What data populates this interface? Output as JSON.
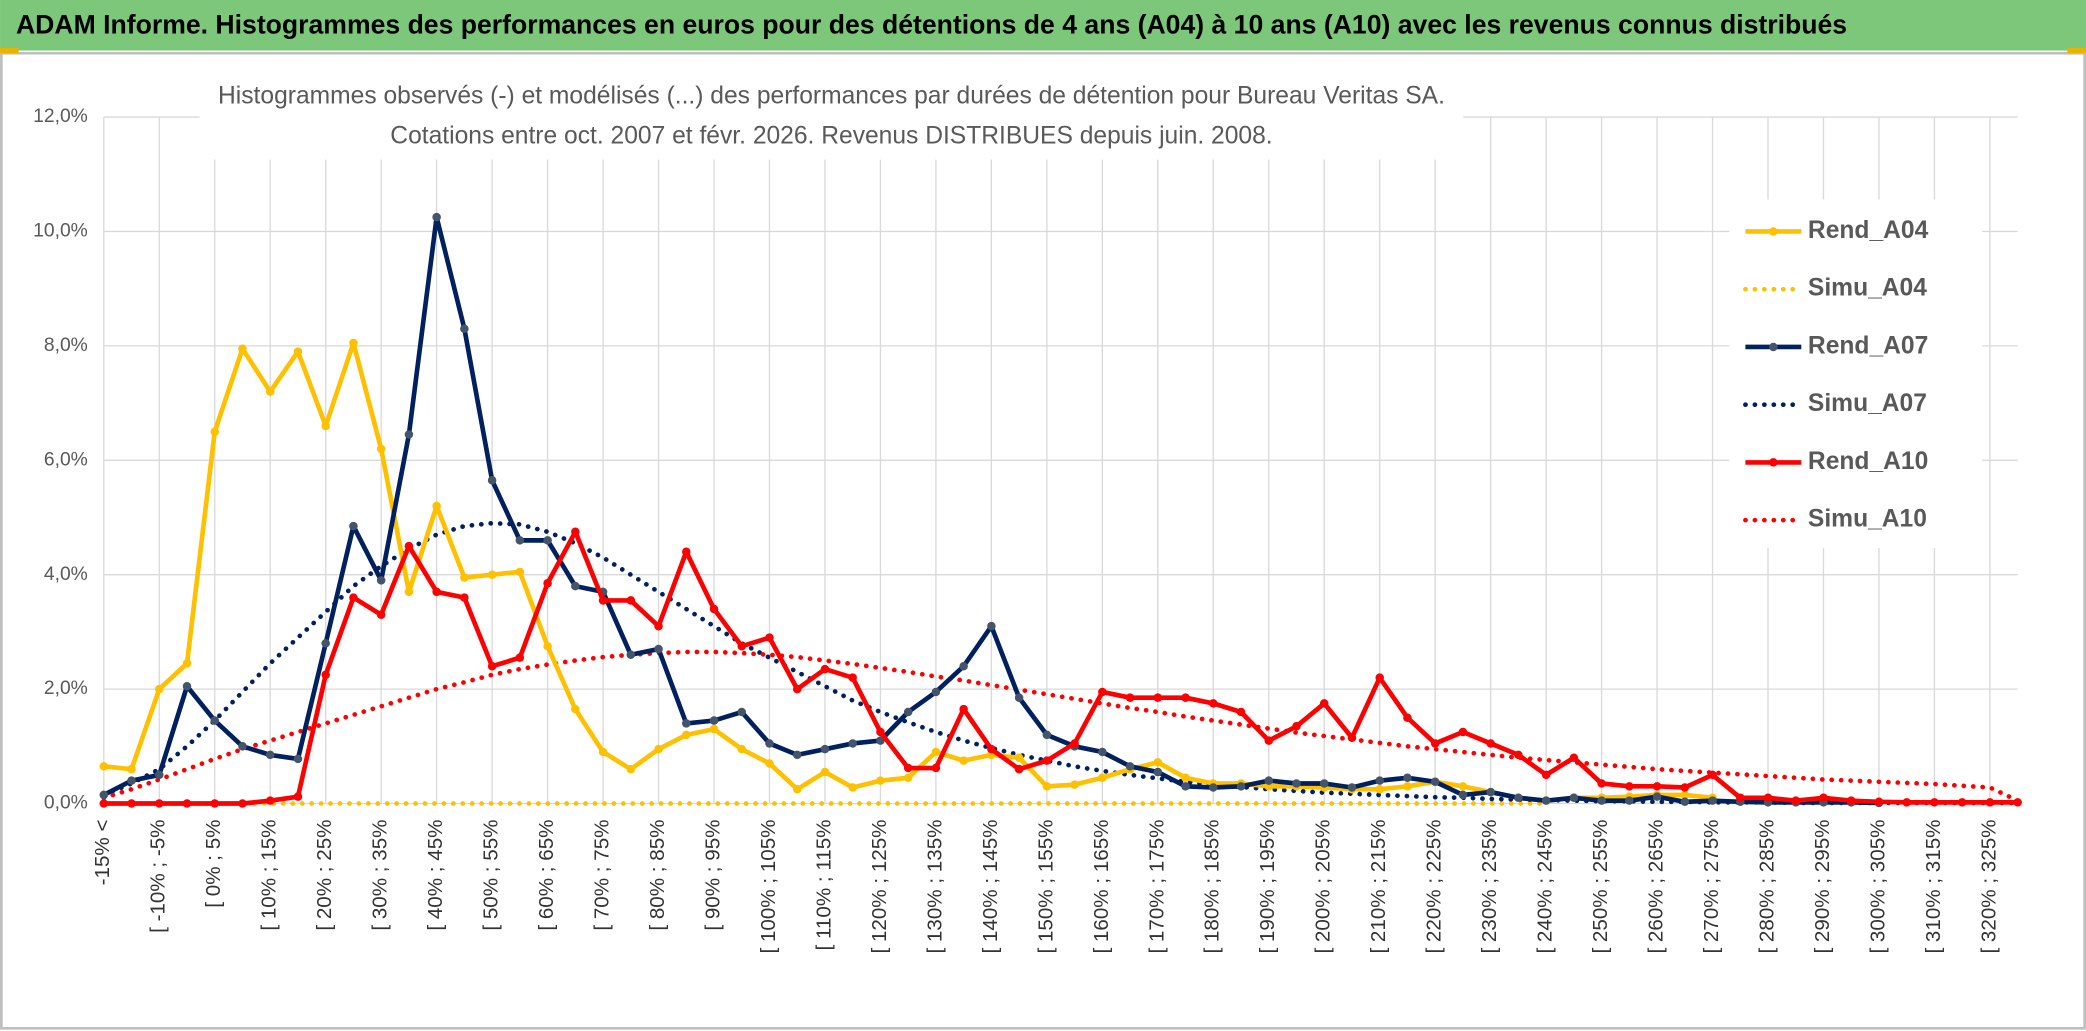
{
  "chart_data": {
    "type": "line",
    "title": "ADAM Informe. Histogrammes des performances en euros pour des détentions de 4 ans (A04) à 10 ans (A10) avec les revenus connus distribués",
    "subtitle": [
      "Histogrammes observés (-) et modélisés (...) des performances par durées de détention pour Bureau Veritas SA.",
      "Cotations entre oct. 2007 et févr. 2026. Revenus DISTRIBUES depuis juin. 2008."
    ],
    "categories": [
      "-15% <",
      null,
      "[ -10% ; -5%",
      null,
      "[ 0% ; 5%",
      null,
      "[ 10% ; 15%",
      null,
      "[ 20% ; 25%",
      null,
      "[ 30% ; 35%",
      null,
      "[ 40% ; 45%",
      null,
      "[ 50% ; 55%",
      null,
      "[ 60% ; 65%",
      null,
      "[ 70% ; 75%",
      null,
      "[ 80% ; 85%",
      null,
      "[ 90% ; 95%",
      null,
      "[ 100% ; 105%",
      null,
      "[ 110% ; 115%",
      null,
      "[ 120% ; 125%",
      null,
      "[ 130% ; 135%",
      null,
      "[ 140% ; 145%",
      null,
      "[ 150% ; 155%",
      null,
      "[ 160% ; 165%",
      null,
      "[ 170% ; 175%",
      null,
      "[ 180% ; 185%",
      null,
      "[ 190% ; 195%",
      null,
      "[ 200% ; 205%",
      null,
      "[ 210% ; 215%",
      null,
      "[ 220% ; 225%",
      null,
      "[ 230% ; 235%",
      null,
      "[ 240% ; 245%",
      null,
      "[ 250% ; 255%",
      null,
      "[ 260% ; 265%",
      null,
      "[ 270% ; 275%",
      null,
      "[ 280% ; 285%",
      null,
      "[ 290% ; 295%",
      null,
      "[ 300% ; 305%",
      null,
      "[ 310% ; 315%",
      null,
      "[ 320% ; 325%",
      null
    ],
    "ylim": [
      0,
      12
    ],
    "yticks": [
      {
        "value": 0,
        "label": "0,0%"
      },
      {
        "value": 2,
        "label": "2,0%"
      },
      {
        "value": 4,
        "label": "4,0%"
      },
      {
        "value": 6,
        "label": "6,0%"
      },
      {
        "value": 8,
        "label": "8,0%"
      },
      {
        "value": 10,
        "label": "10,0%"
      },
      {
        "value": 12,
        "label": "12,0%"
      }
    ],
    "grid": true,
    "legend": "right",
    "series": [
      {
        "name": "Rend_A04",
        "color": "#ffc000",
        "style": "solid",
        "values": [
          0.65,
          0.6,
          2.0,
          2.45,
          6.5,
          7.95,
          7.2,
          7.9,
          6.6,
          8.05,
          6.2,
          3.7,
          5.2,
          3.95,
          4.0,
          4.05,
          2.75,
          1.65,
          0.9,
          0.6,
          0.95,
          1.2,
          1.3,
          0.95,
          0.7,
          0.25,
          0.55,
          0.28,
          0.4,
          0.45,
          0.9,
          0.75,
          0.85,
          0.8,
          0.3,
          0.33,
          0.45,
          0.6,
          0.72,
          0.45,
          0.35,
          0.35,
          0.3,
          0.3,
          0.28,
          0.25,
          0.25,
          0.3,
          0.38,
          0.3,
          0.2,
          0.1,
          0.05,
          0.1,
          0.1,
          0.12,
          0.15,
          0.15,
          0.1,
          null,
          null,
          null,
          null,
          null,
          null,
          null,
          null,
          null,
          null,
          null
        ]
      },
      {
        "name": "Simu_A04",
        "color": "#ffc000",
        "style": "dotted",
        "values": [
          0,
          0,
          0,
          0,
          0,
          0,
          0,
          0,
          0,
          0,
          0,
          0,
          0,
          0,
          0,
          0,
          0,
          0,
          0,
          0,
          0,
          0,
          0,
          0,
          0,
          0,
          0,
          0,
          0,
          0,
          0,
          0,
          0,
          0,
          0,
          0,
          0,
          0,
          0,
          0,
          0,
          0,
          0,
          0,
          0,
          0,
          0,
          0,
          0,
          0,
          0,
          0,
          0,
          null,
          null,
          null,
          null,
          null,
          null,
          null,
          null,
          null,
          null,
          null,
          null,
          null,
          null,
          null,
          null,
          null
        ]
      },
      {
        "name": "Rend_A07",
        "color": "#002060",
        "style": "solid",
        "values": [
          0.15,
          0.4,
          0.5,
          2.05,
          1.45,
          1.0,
          0.85,
          0.78,
          2.8,
          4.85,
          3.9,
          6.45,
          10.25,
          8.3,
          5.65,
          4.6,
          4.6,
          3.8,
          3.7,
          2.6,
          2.7,
          1.4,
          1.45,
          1.6,
          1.05,
          0.85,
          0.95,
          1.05,
          1.1,
          1.6,
          1.95,
          2.4,
          3.1,
          1.85,
          1.2,
          1.0,
          0.9,
          0.65,
          0.55,
          0.3,
          0.28,
          0.3,
          0.4,
          0.35,
          0.35,
          0.28,
          0.4,
          0.45,
          0.38,
          0.15,
          0.2,
          0.1,
          0.05,
          0.1,
          0.05,
          0.05,
          0.12,
          0.03,
          0.05,
          0.03,
          0.02,
          0.02,
          0.02,
          0.02,
          0.01,
          null,
          null,
          null,
          null,
          null
        ]
      },
      {
        "name": "Simu_A07",
        "color": "#002060",
        "style": "dotted",
        "values": [
          0.15,
          0.35,
          0.6,
          1.0,
          1.45,
          1.95,
          2.45,
          2.9,
          3.35,
          3.8,
          4.15,
          4.45,
          4.7,
          4.85,
          4.9,
          4.88,
          4.75,
          4.55,
          4.3,
          4.0,
          3.7,
          3.4,
          3.1,
          2.8,
          2.55,
          2.3,
          2.05,
          1.8,
          1.6,
          1.42,
          1.25,
          1.1,
          0.97,
          0.85,
          0.75,
          0.65,
          0.57,
          0.5,
          0.44,
          0.38,
          0.33,
          0.29,
          0.25,
          0.22,
          0.19,
          0.17,
          0.15,
          0.13,
          0.11,
          0.1,
          0.08,
          0.07,
          0.06,
          0.05,
          0.04,
          0.04,
          0.03,
          0.03,
          0.02,
          0.02,
          0.02,
          0.01,
          0.01,
          0.01,
          0.01,
          0.01,
          0.01,
          0.01,
          0.01,
          0.01
        ]
      },
      {
        "name": "Rend_A10",
        "color": "#ff0000",
        "style": "solid",
        "values": [
          0,
          0,
          0,
          0,
          0,
          0,
          0.05,
          0.12,
          2.25,
          3.6,
          3.3,
          4.5,
          3.7,
          3.6,
          2.4,
          2.55,
          3.85,
          4.75,
          3.55,
          3.55,
          3.1,
          4.4,
          3.4,
          2.75,
          2.9,
          2.0,
          2.35,
          2.2,
          1.25,
          0.62,
          0.62,
          1.65,
          0.95,
          0.6,
          0.75,
          1.05,
          1.95,
          1.85,
          1.85,
          1.85,
          1.75,
          1.6,
          1.1,
          1.35,
          1.75,
          1.15,
          2.2,
          1.5,
          1.05,
          1.25,
          1.05,
          0.85,
          0.5,
          0.8,
          0.35,
          0.3,
          0.3,
          0.28,
          0.5,
          0.1,
          0.1,
          0.05,
          0.1,
          0.05,
          0.03,
          0.02,
          0.02,
          0.02,
          0.02,
          0.02
        ]
      },
      {
        "name": "Simu_A10",
        "color": "#ff0000",
        "style": "dotted",
        "values": [
          0.1,
          0.25,
          0.42,
          0.6,
          0.78,
          0.95,
          1.1,
          1.25,
          1.4,
          1.55,
          1.7,
          1.85,
          2.0,
          2.12,
          2.25,
          2.35,
          2.43,
          2.5,
          2.56,
          2.6,
          2.63,
          2.65,
          2.65,
          2.63,
          2.6,
          2.56,
          2.5,
          2.44,
          2.37,
          2.3,
          2.22,
          2.15,
          2.07,
          1.99,
          1.91,
          1.83,
          1.75,
          1.67,
          1.6,
          1.52,
          1.45,
          1.38,
          1.31,
          1.24,
          1.18,
          1.12,
          1.06,
          1.0,
          0.95,
          0.9,
          0.85,
          0.8,
          0.76,
          0.72,
          0.68,
          0.64,
          0.6,
          0.57,
          0.54,
          0.51,
          0.48,
          0.45,
          0.42,
          0.4,
          0.38,
          0.36,
          0.34,
          0.31,
          0.28,
          0.05
        ]
      }
    ]
  }
}
